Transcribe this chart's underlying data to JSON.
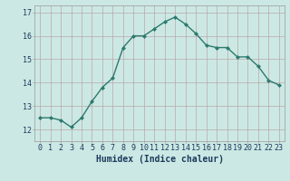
{
  "x": [
    0,
    1,
    2,
    3,
    4,
    5,
    6,
    7,
    8,
    9,
    10,
    11,
    12,
    13,
    14,
    15,
    16,
    17,
    18,
    19,
    20,
    21,
    22,
    23
  ],
  "y": [
    12.5,
    12.5,
    12.4,
    12.1,
    12.5,
    13.2,
    13.8,
    14.2,
    15.5,
    16.0,
    16.0,
    16.3,
    16.6,
    16.8,
    16.5,
    16.1,
    15.6,
    15.5,
    15.5,
    15.1,
    15.1,
    14.7,
    14.1,
    13.9
  ],
  "line_color": "#2d7a6e",
  "marker": "D",
  "marker_size": 2,
  "bg_color": "#cce8e4",
  "grid_color": "#b8a8a8",
  "xlabel": "Humidex (Indice chaleur)",
  "xlim": [
    -0.5,
    23.5
  ],
  "ylim": [
    11.5,
    17.3
  ],
  "yticks": [
    12,
    13,
    14,
    15,
    16,
    17
  ],
  "xticks": [
    0,
    1,
    2,
    3,
    4,
    5,
    6,
    7,
    8,
    9,
    10,
    11,
    12,
    13,
    14,
    15,
    16,
    17,
    18,
    19,
    20,
    21,
    22,
    23
  ],
  "xlabel_fontsize": 7,
  "tick_fontsize": 6,
  "line_width": 1.0
}
